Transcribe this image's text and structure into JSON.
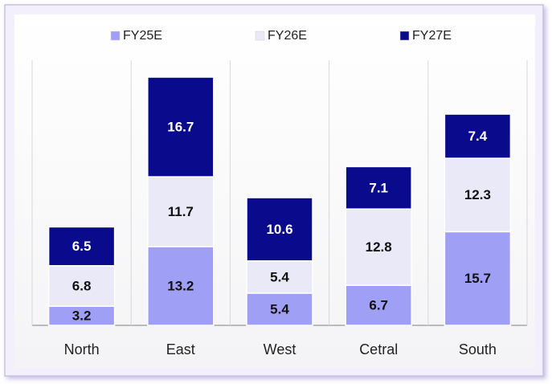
{
  "chart_data": {
    "type": "stacked_bar",
    "categories": [
      "North",
      "East",
      "West",
      "Cetral",
      "South"
    ],
    "series": [
      {
        "name": "FY25E",
        "color": "#9f9ff5",
        "values": [
          3.2,
          13.2,
          5.4,
          6.7,
          15.7
        ]
      },
      {
        "name": "FY26E",
        "color": "#e9e9f8",
        "values": [
          6.8,
          11.7,
          5.4,
          12.8,
          12.3
        ]
      },
      {
        "name": "FY27E",
        "color": "#0a0a8c",
        "values": [
          6.5,
          16.7,
          10.6,
          7.1,
          7.4
        ]
      }
    ],
    "legend": "top"
  }
}
